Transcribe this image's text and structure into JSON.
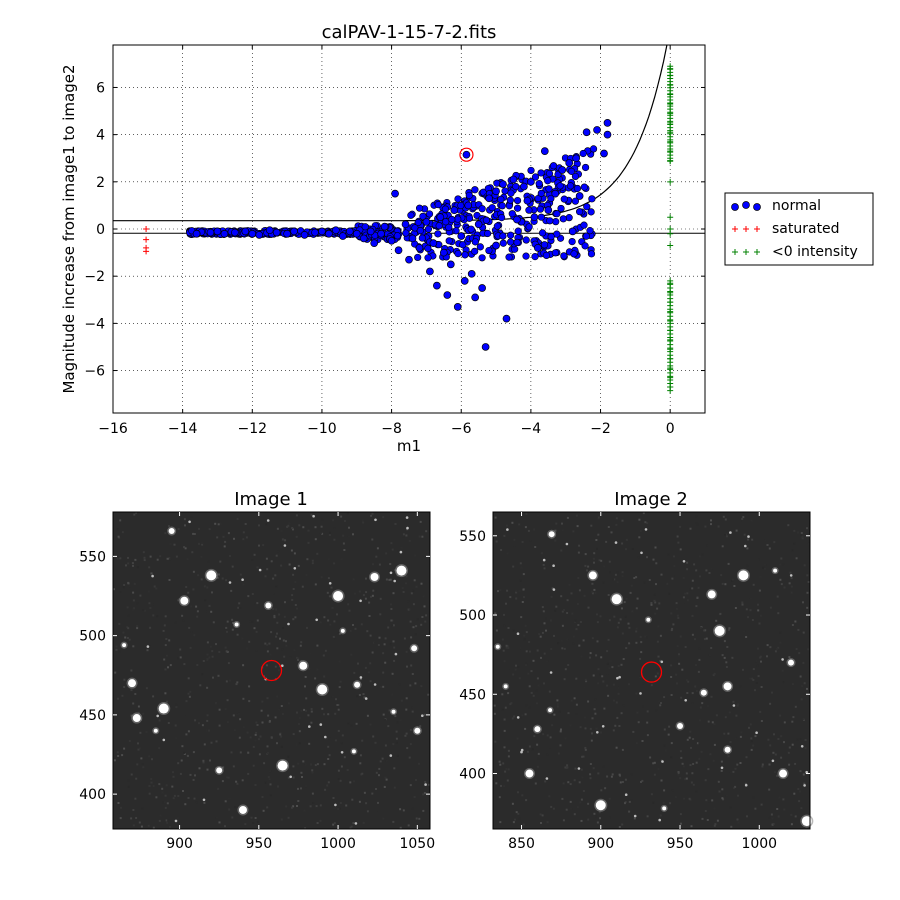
{
  "chart_data": [
    {
      "type": "scatter",
      "title": "calPAV-1-15-7-2.fits",
      "xlabel": "m1",
      "ylabel": "Magnitude increase from image1 to image2",
      "xlim": [
        -16,
        1
      ],
      "ylim": [
        -7.8,
        7.8
      ],
      "xticks": [
        -16,
        -14,
        -12,
        -10,
        -8,
        -6,
        -4,
        -2,
        0
      ],
      "yticks": [
        -6,
        -4,
        -2,
        0,
        2,
        4,
        6
      ],
      "grid": true,
      "legend_position": "outside-right",
      "colors": {
        "normal": "#0000ff",
        "saturated": "#ff0000",
        "negative": "#008000",
        "highlight": "#ff0000",
        "curve": "#000000"
      },
      "series": [
        {
          "name": "normal",
          "marker": "circle",
          "points": [
            [
              -13.6,
              -0.2
            ],
            [
              -13.2,
              -0.15
            ],
            [
              -13.0,
              -0.1
            ],
            [
              -12.8,
              -0.2
            ],
            [
              -12.5,
              -0.15
            ],
            [
              -12.2,
              -0.1
            ],
            [
              -12.0,
              -0.2
            ],
            [
              -11.8,
              -0.25
            ],
            [
              -11.5,
              -0.05
            ],
            [
              -11.3,
              -0.15
            ],
            [
              -11.0,
              -0.2
            ],
            [
              -10.8,
              -0.1
            ],
            [
              -10.5,
              -0.25
            ],
            [
              -10.2,
              -0.15
            ],
            [
              -10.0,
              -0.1
            ],
            [
              -9.8,
              -0.2
            ],
            [
              -9.6,
              -0.05
            ],
            [
              -9.4,
              -0.3
            ],
            [
              -9.2,
              -0.1
            ],
            [
              -9.0,
              -0.2
            ],
            [
              -8.8,
              -0.4
            ],
            [
              -8.6,
              -0.1
            ],
            [
              -8.5,
              -0.6
            ],
            [
              -8.3,
              -0.2
            ],
            [
              -8.2,
              0.1
            ],
            [
              -8.0,
              -0.5
            ],
            [
              -7.9,
              1.5
            ],
            [
              -7.8,
              -0.9
            ],
            [
              -7.6,
              0.2
            ],
            [
              -7.5,
              -1.3
            ],
            [
              -7.4,
              -0.4
            ],
            [
              -7.2,
              -0.8
            ],
            [
              -7.0,
              0.3
            ],
            [
              -6.9,
              -1.8
            ],
            [
              -6.8,
              -0.6
            ],
            [
              -6.7,
              -2.4
            ],
            [
              -6.6,
              0.5
            ],
            [
              -6.5,
              -1.0
            ],
            [
              -6.4,
              -2.8
            ],
            [
              -6.3,
              -1.5
            ],
            [
              -6.2,
              0.8
            ],
            [
              -6.1,
              -3.3
            ],
            [
              -6.0,
              -0.3
            ],
            [
              -5.9,
              -2.2
            ],
            [
              -5.8,
              1.0
            ],
            [
              -5.7,
              -1.9
            ],
            [
              -5.6,
              -2.9
            ],
            [
              -5.5,
              0.2
            ],
            [
              -5.4,
              -2.5
            ],
            [
              -5.3,
              -5.0
            ],
            [
              -5.2,
              1.3
            ],
            [
              -5.0,
              -0.7
            ],
            [
              -4.8,
              1.9
            ],
            [
              -4.7,
              -3.8
            ],
            [
              -4.5,
              2.1
            ],
            [
              -4.4,
              0.4
            ],
            [
              -4.2,
              1.8
            ],
            [
              -4.0,
              2.0
            ],
            [
              -3.9,
              0.5
            ],
            [
              -3.8,
              -0.8
            ],
            [
              -3.6,
              3.3
            ],
            [
              -3.5,
              0.8
            ],
            [
              -3.3,
              1.5
            ],
            [
              -3.1,
              2.5
            ],
            [
              -2.9,
              2.8
            ],
            [
              -2.8,
              -0.1
            ],
            [
              -2.7,
              3.0
            ],
            [
              -2.6,
              1.4
            ],
            [
              -2.4,
              4.1
            ],
            [
              -2.1,
              4.2
            ],
            [
              -1.9,
              3.2
            ],
            [
              -1.8,
              4.0
            ],
            [
              -1.8,
              4.5
            ],
            [
              -4.1,
              1.2
            ],
            [
              -5.0,
              1.6
            ]
          ]
        },
        {
          "name": "saturated",
          "marker": "plus",
          "points": [
            [
              -15.05,
              0.0
            ],
            [
              -15.05,
              -0.45
            ],
            [
              -15.05,
              -0.8
            ],
            [
              -15.05,
              -0.95
            ]
          ]
        },
        {
          "name": "<0 intensity",
          "marker": "plus",
          "points": [
            [
              0,
              6.8
            ],
            [
              0,
              6.5
            ],
            [
              0,
              6.1
            ],
            [
              0,
              5.7
            ],
            [
              0,
              5.3
            ],
            [
              0,
              4.9
            ],
            [
              0,
              4.5
            ],
            [
              0,
              4.1
            ],
            [
              0,
              3.7
            ],
            [
              0,
              3.3
            ],
            [
              0,
              2.9
            ],
            [
              0,
              2.0
            ],
            [
              0,
              0.5
            ],
            [
              0,
              0.0
            ],
            [
              0,
              -0.2
            ],
            [
              0,
              -0.7
            ],
            [
              0,
              -2.3
            ],
            [
              0,
              -2.7
            ],
            [
              0,
              -3.1
            ],
            [
              0,
              -3.5
            ],
            [
              0,
              -3.9
            ],
            [
              0,
              -4.3
            ],
            [
              0,
              -4.7
            ],
            [
              0,
              -5.1
            ],
            [
              0,
              -5.5
            ],
            [
              0,
              -5.9
            ],
            [
              0,
              -6.3
            ],
            [
              0,
              -6.7
            ]
          ]
        }
      ],
      "highlight_point": [
        -5.85,
        3.15
      ]
    },
    {
      "type": "image",
      "title": "Image 1",
      "xlim": [
        858,
        1058
      ],
      "ylim": [
        378,
        578
      ],
      "xticks": [
        900,
        950,
        1000,
        1050
      ],
      "yticks": [
        400,
        450,
        500,
        550
      ],
      "marker": [
        958,
        478
      ],
      "stars": [
        [
          865,
          494
        ],
        [
          895,
          566
        ],
        [
          903,
          522
        ],
        [
          920,
          538
        ],
        [
          936,
          507
        ],
        [
          956,
          519
        ],
        [
          978,
          481
        ],
        [
          990,
          466
        ],
        [
          1003,
          503
        ],
        [
          1012,
          469
        ],
        [
          1023,
          537
        ],
        [
          1040,
          541
        ],
        [
          1035,
          452
        ],
        [
          1048,
          492
        ],
        [
          873,
          448
        ],
        [
          890,
          454
        ],
        [
          885,
          440
        ],
        [
          925,
          415
        ],
        [
          940,
          390
        ],
        [
          965,
          418
        ],
        [
          1010,
          427
        ],
        [
          1050,
          440
        ],
        [
          870,
          470
        ],
        [
          1000,
          525
        ]
      ]
    },
    {
      "type": "image",
      "title": "Image 2",
      "xlim": [
        832,
        1032
      ],
      "ylim": [
        365,
        565
      ],
      "xticks": [
        850,
        900,
        950,
        1000
      ],
      "yticks": [
        400,
        450,
        500,
        550
      ],
      "marker": [
        932,
        464
      ],
      "stars": [
        [
          835,
          480
        ],
        [
          869,
          551
        ],
        [
          895,
          525
        ],
        [
          910,
          510
        ],
        [
          930,
          497
        ],
        [
          965,
          451
        ],
        [
          980,
          455
        ],
        [
          990,
          525
        ],
        [
          1010,
          528
        ],
        [
          1020,
          470
        ],
        [
          970,
          513
        ],
        [
          975,
          490
        ],
        [
          868,
          440
        ],
        [
          860,
          428
        ],
        [
          855,
          400
        ],
        [
          900,
          380
        ],
        [
          940,
          378
        ],
        [
          980,
          415
        ],
        [
          1015,
          400
        ],
        [
          1030,
          370
        ],
        [
          840,
          455
        ],
        [
          950,
          430
        ]
      ]
    }
  ]
}
